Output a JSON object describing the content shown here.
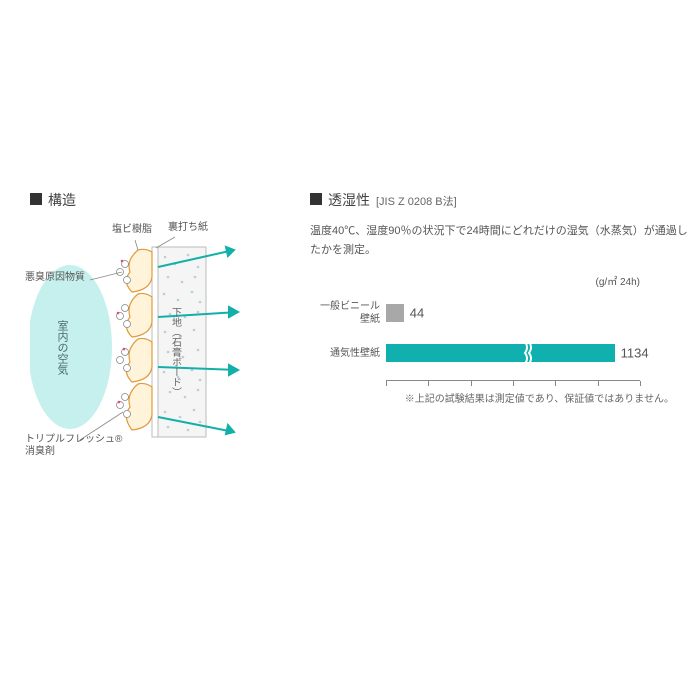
{
  "structure": {
    "title": "構造",
    "labels": {
      "vinyl_resin": "塩ビ樹脂",
      "backing_paper": "裏打ち紙",
      "odor_substance": "悪臭原因物質",
      "indoor_air": "室内の空気",
      "base_gypsum": "下地（石膏ボード）",
      "deodorizer": "トリプルフレッシュ®\n消臭剤"
    },
    "colors": {
      "air_fill": "#b8ece9",
      "resin_fill": "#fff3da",
      "resin_stroke": "#e09a3a",
      "base_fill": "#f5f5f5",
      "dot_color": "#b8cfd4",
      "arrow_color": "#12b0a8",
      "odor_dot": "#e04a8a",
      "deodorizer_dot": "#6a7a88"
    }
  },
  "permeability": {
    "title": "透湿性",
    "subtitle": "[JIS Z 0208 B法]",
    "description": "温度40℃、湿度90％の状況下で24時間にどれだけの湿気（水蒸気）が通過したかを測定。",
    "unit": "(g/㎡ 24h)",
    "bars": [
      {
        "label": "一般ビニール\n壁紙",
        "value": 44,
        "width_pct": 7,
        "color": "#a8a8a8",
        "has_break": false
      },
      {
        "label": "通気性壁紙",
        "value": 1134,
        "width_pct": 90,
        "color": "#0fb0ad",
        "has_break": true
      }
    ],
    "axis_ticks": [
      0,
      16.6,
      33.3,
      50,
      66.6,
      83.3,
      100
    ],
    "footnote": "※上記の試験結果は測定値であり、保証値ではありません。"
  }
}
